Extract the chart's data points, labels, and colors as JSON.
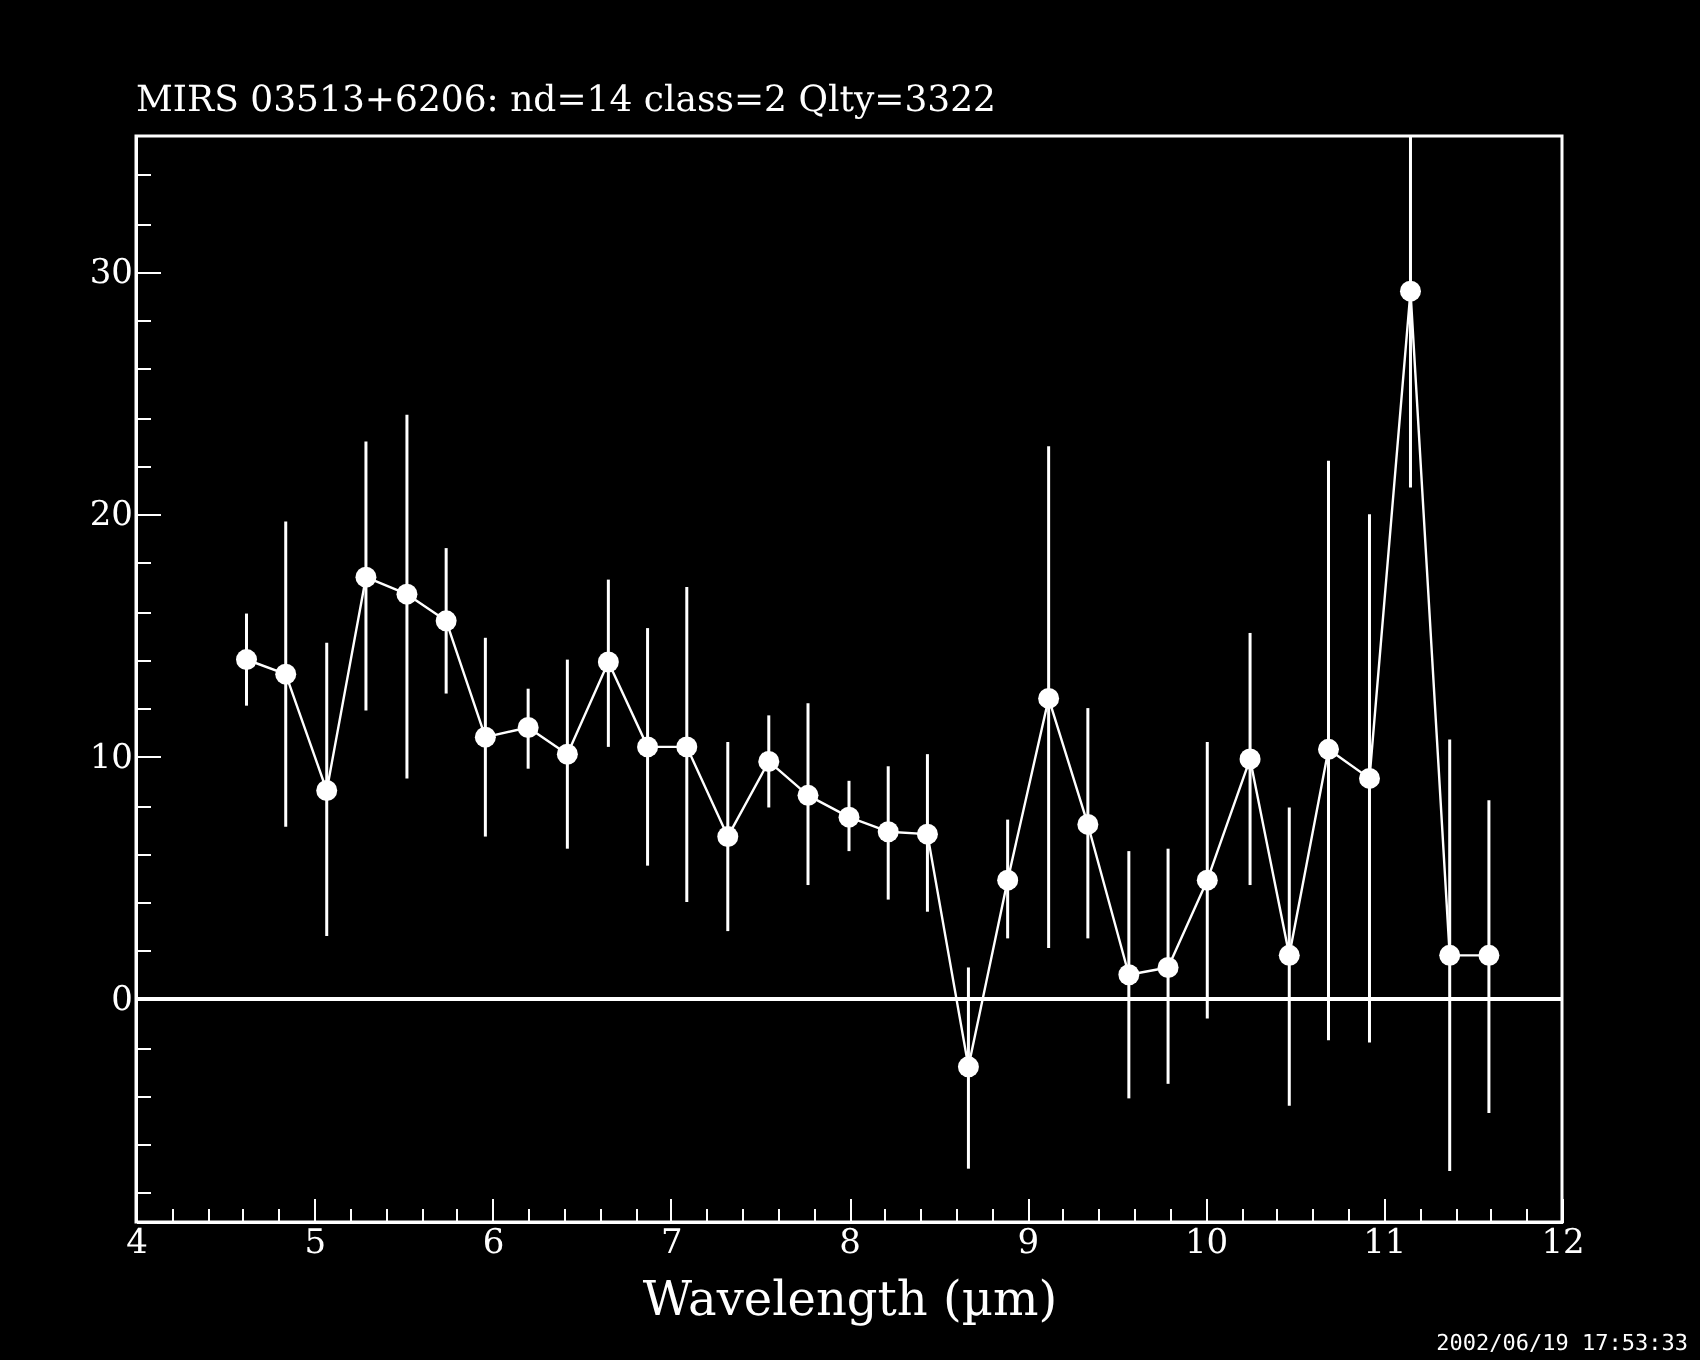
{
  "chart_data": {
    "type": "line",
    "title": "MIRS 03513+6206:    nd=14    class=2    Qlty=3322",
    "xlabel": "Wavelength (µm)",
    "x": [
      4.62,
      4.84,
      5.07,
      5.29,
      5.52,
      5.74,
      5.96,
      6.2,
      6.42,
      6.65,
      6.87,
      7.09,
      7.32,
      7.55,
      7.77,
      8.0,
      8.22,
      8.44,
      8.67,
      8.89,
      9.12,
      9.34,
      9.57,
      9.79,
      10.01,
      10.25,
      10.47,
      10.69,
      10.92,
      11.15,
      11.37,
      11.59
    ],
    "series": [
      {
        "color": "#ffffff",
        "values": [
          14.0,
          13.4,
          8.6,
          17.4,
          16.7,
          15.6,
          10.8,
          11.2,
          10.1,
          13.9,
          10.4,
          10.4,
          6.7,
          9.8,
          8.4,
          7.5,
          6.9,
          6.8,
          -2.8,
          4.9,
          12.4,
          7.2,
          1.0,
          1.3,
          4.9,
          9.9,
          1.8,
          10.3,
          9.1,
          29.2,
          1.8,
          1.8
        ],
        "errors": [
          [
            12.1,
            15.9
          ],
          [
            7.1,
            19.7
          ],
          [
            2.6,
            14.7
          ],
          [
            11.9,
            23.0
          ],
          [
            9.1,
            24.1
          ],
          [
            12.6,
            18.6
          ],
          [
            6.7,
            14.9
          ],
          [
            9.5,
            12.8
          ],
          [
            6.2,
            14.0
          ],
          [
            10.4,
            17.3
          ],
          [
            5.5,
            15.3
          ],
          [
            4.0,
            17.0
          ],
          [
            2.8,
            10.6
          ],
          [
            7.9,
            11.7
          ],
          [
            4.7,
            12.2
          ],
          [
            6.1,
            9.0
          ],
          [
            4.1,
            9.6
          ],
          [
            3.6,
            10.1
          ],
          [
            -7.0,
            1.3
          ],
          [
            2.5,
            7.4
          ],
          [
            2.1,
            22.8
          ],
          [
            2.5,
            12.0
          ],
          [
            -4.1,
            6.1
          ],
          [
            -3.5,
            6.2
          ],
          [
            -0.8,
            10.6
          ],
          [
            4.7,
            15.1
          ],
          [
            -4.4,
            7.9
          ],
          [
            -1.7,
            22.2
          ],
          [
            -1.8,
            20.0
          ],
          [
            21.1,
            35.6
          ],
          [
            -7.1,
            10.7
          ],
          [
            -4.7,
            8.2
          ]
        ]
      }
    ],
    "xlim": [
      4,
      12
    ],
    "ylim": [
      -9.2,
      35.6
    ],
    "xticks": [
      4,
      {
        "value": 4.2,
        "label": null
      },
      {
        "value": 4.4,
        "label": null
      },
      {
        "value": 4.6,
        "label": null
      },
      {
        "value": 4.8,
        "label": null
      },
      5,
      {
        "value": 5.2,
        "label": null
      },
      {
        "value": 5.4,
        "label": null
      },
      {
        "value": 5.6,
        "label": null
      },
      {
        "value": 5.8,
        "label": null
      },
      6,
      {
        "value": 6.2,
        "label": null
      },
      {
        "value": 6.4,
        "label": null
      },
      {
        "value": 6.6,
        "label": null
      },
      {
        "value": 6.8,
        "label": null
      },
      7,
      {
        "value": 7.2,
        "label": null
      },
      {
        "value": 7.4,
        "label": null
      },
      {
        "value": 7.6,
        "label": null
      },
      {
        "value": 7.8,
        "label": null
      },
      8,
      {
        "value": 8.2,
        "label": null
      },
      {
        "value": 8.4,
        "label": null
      },
      {
        "value": 8.6,
        "label": null
      },
      {
        "value": 8.8,
        "label": null
      },
      9,
      {
        "value": 9.2,
        "label": null
      },
      {
        "value": 9.4,
        "label": null
      },
      {
        "value": 9.6,
        "label": null
      },
      {
        "value": 9.8,
        "label": null
      },
      10,
      {
        "value": 10.2,
        "label": null
      },
      {
        "value": 10.4,
        "label": null
      },
      {
        "value": 10.6,
        "label": null
      },
      {
        "value": 10.8,
        "label": null
      },
      11,
      {
        "value": 11.2,
        "label": null
      },
      {
        "value": 11.4,
        "label": null
      },
      {
        "value": 11.6,
        "label": null
      },
      {
        "value": 11.8,
        "label": null
      },
      12
    ],
    "yticks": [
      {
        "value": -8,
        "label": null
      },
      {
        "value": -6,
        "label": null
      },
      {
        "value": -4,
        "label": null
      },
      {
        "value": -2,
        "label": null
      },
      0,
      {
        "value": 2,
        "label": null
      },
      {
        "value": 4,
        "label": null
      },
      {
        "value": 6,
        "label": null
      },
      {
        "value": 8,
        "label": null
      },
      10,
      {
        "value": 12,
        "label": null
      },
      {
        "value": 14,
        "label": null
      },
      {
        "value": 16,
        "label": null
      },
      {
        "value": 18,
        "label": null
      },
      20,
      {
        "value": 22,
        "label": null
      },
      {
        "value": 24,
        "label": null
      },
      {
        "value": 26,
        "label": null
      },
      {
        "value": 28,
        "label": null
      },
      30,
      {
        "value": 32,
        "label": null
      },
      {
        "value": 34,
        "label": null
      }
    ],
    "ref_lines": [
      {
        "axis": "y",
        "value": 0,
        "color": "#ffffff"
      }
    ],
    "marker": "circle",
    "line_style": "solid",
    "grid": false,
    "annotations": [
      "2002/06/19 17:53:33"
    ]
  }
}
